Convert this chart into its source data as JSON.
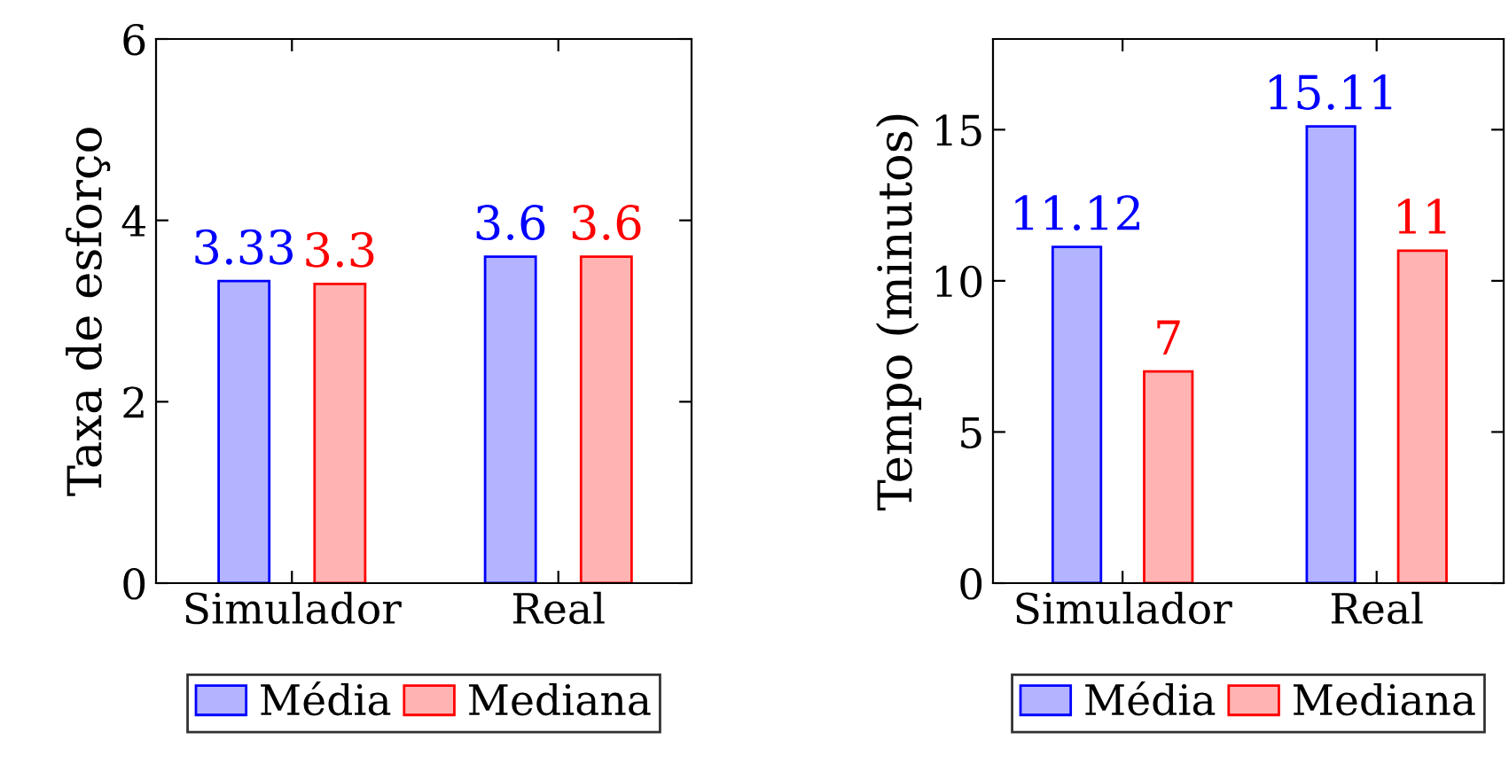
{
  "chart_data": [
    {
      "type": "bar",
      "ylabel": "Taxa de esforço",
      "categories": [
        "Simulador",
        "Real"
      ],
      "ylim": [
        0,
        6
      ],
      "yticks": [
        0,
        2,
        4,
        6
      ],
      "data_labels": true,
      "legend": "bottom",
      "grid": false,
      "series": [
        {
          "name": "Média",
          "color": "#b3b3ff",
          "values": [
            3.33,
            3.6
          ]
        },
        {
          "name": "Mediana",
          "color": "#ffb3b3",
          "values": [
            3.3,
            3.6
          ]
        }
      ]
    },
    {
      "type": "bar",
      "ylabel": "Tempo (minutos)",
      "categories": [
        "Simulador",
        "Real"
      ],
      "ylim": [
        0,
        18
      ],
      "yticks": [
        0,
        5,
        10,
        15
      ],
      "data_labels": true,
      "legend": "bottom",
      "grid": false,
      "series": [
        {
          "name": "Média",
          "color": "#b3b3ff",
          "values": [
            11.12,
            15.11
          ]
        },
        {
          "name": "Mediana",
          "color": "#ffb3b3",
          "values": [
            7,
            11
          ]
        }
      ]
    }
  ]
}
